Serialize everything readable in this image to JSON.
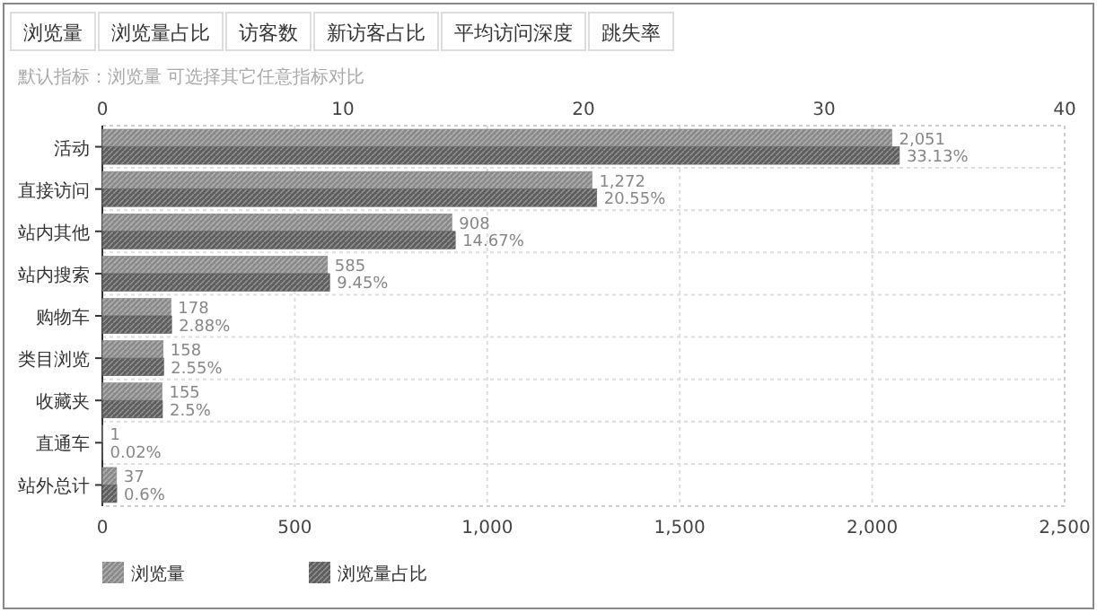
{
  "chart_data": {
    "type": "bar",
    "orientation": "horizontal",
    "subtitle": "默认指标：浏览量 可选择其它任意指标对比",
    "annotations": [
      "浏览量",
      "浏览量占比",
      "访客数",
      "新访客占比",
      "平均访问深度",
      "跳失率"
    ],
    "categories": [
      "活动",
      "直接访问",
      "站内其他",
      "站内搜索",
      "购物车",
      "类目浏览",
      "收藏夹",
      "直通车",
      "站外总计"
    ],
    "series": [
      {
        "name": "浏览量",
        "color": "#8a8a8a",
        "values": [
          2051,
          1272,
          908,
          585,
          178,
          158,
          155,
          1,
          37
        ],
        "value_labels": [
          "2,051",
          "1,272",
          "908",
          "585",
          "178",
          "158",
          "155",
          "1",
          "37"
        ]
      },
      {
        "name": "浏览量占比",
        "color": "#5e5e5e",
        "axis": "x2",
        "values": [
          33.13,
          20.55,
          14.67,
          9.45,
          2.88,
          2.55,
          2.5,
          0.02,
          0.6
        ],
        "value_labels": [
          "33.13%",
          "20.55%",
          "14.67%",
          "9.45%",
          "2.88%",
          "2.55%",
          "2.5%",
          "0.02%",
          "0.6%"
        ]
      }
    ],
    "xlim": [
      0,
      2500
    ],
    "xticks": [
      0,
      500,
      {
        "value": 1000,
        "label": "1,000"
      },
      {
        "value": 1500,
        "label": "1,500"
      },
      {
        "value": 2000,
        "label": "2,000"
      },
      {
        "value": 2500,
        "label": "2,500"
      }
    ],
    "x2lim": [
      0,
      40
    ],
    "x2ticks": [
      0,
      10,
      20,
      30,
      40
    ],
    "grid": true,
    "legend": "bottom"
  }
}
